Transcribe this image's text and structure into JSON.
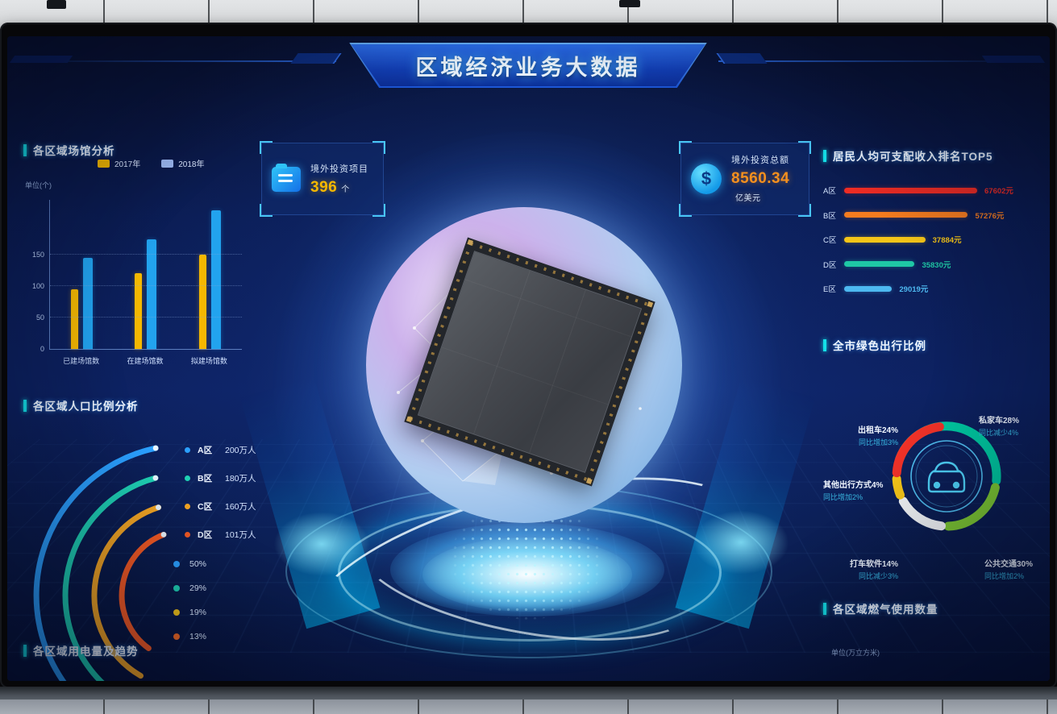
{
  "header": {
    "title": "区域经济业务大数据"
  },
  "cards": {
    "projects": {
      "icon": "folder-icon",
      "title": "境外投资项目",
      "value": "396",
      "unit": "个"
    },
    "investment": {
      "icon": "dollar-icon",
      "icon_glyph": "$",
      "title": "境外投资总额",
      "value": "8560.34",
      "unit": "亿美元"
    }
  },
  "venues_panel": {
    "title": "各区域场馆分析",
    "unit_label": "单位(个)",
    "chart_data": {
      "type": "bar",
      "categories": [
        "已建场馆数",
        "在建场馆数",
        "拟建场馆数"
      ],
      "series": [
        {
          "name": "2017年",
          "color": "#f5b800",
          "legend_color": "#f5b800",
          "values": [
            95,
            120,
            150
          ]
        },
        {
          "name": "2018年",
          "color": "#22a3ee",
          "legend_color": "#9db9f2",
          "values": [
            145,
            175,
            220
          ]
        }
      ],
      "yticks": [
        0,
        50,
        100,
        150
      ],
      "ylim": [
        0,
        150
      ],
      "grid": "dotted"
    }
  },
  "population_panel": {
    "title": "各区域人口比例分析",
    "chart_data": {
      "type": "arc-rings",
      "items": [
        {
          "label": "A区",
          "value": "200万人",
          "color": "#2ba0ff"
        },
        {
          "label": "B区",
          "value": "180万人",
          "color": "#1fd1b4"
        },
        {
          "label": "C区",
          "value": "160万人",
          "color": "#f5a623"
        },
        {
          "label": "D区",
          "value": "101万人",
          "color": "#f55a23"
        }
      ],
      "legend": [
        {
          "label": "50%",
          "color": "#2ba0ff"
        },
        {
          "label": "29%",
          "color": "#1fd1b4"
        },
        {
          "label": "19%",
          "color": "#f5c518"
        },
        {
          "label": "13%",
          "color": "#f56a23"
        }
      ]
    }
  },
  "electricity_panel": {
    "title": "各区域用电量及趋势"
  },
  "income_panel": {
    "title": "居民人均可支配收入排名TOP5",
    "chart_data": {
      "type": "bar",
      "orientation": "horizontal",
      "rows": [
        {
          "label": "A区",
          "value": "67602元",
          "number": 67602,
          "color": "#ee2c24",
          "length_pct": 100
        },
        {
          "label": "B区",
          "value": "57276元",
          "number": 57276,
          "color": "#f57c1f",
          "length_pct": 93
        },
        {
          "label": "C区",
          "value": "37884元",
          "number": 37884,
          "color": "#f5c518",
          "length_pct": 61
        },
        {
          "label": "D区",
          "value": "35830元",
          "number": 35830,
          "color": "#1fc8a5",
          "length_pct": 53
        },
        {
          "label": "E区",
          "value": "29019元",
          "number": 29019,
          "color": "#4db8f0",
          "length_pct": 36
        }
      ]
    }
  },
  "travel_panel": {
    "title": "全市绿色出行比例",
    "chart_data": {
      "type": "pie",
      "center_icon": "car-icon",
      "slices": [
        {
          "label": "私家车28%",
          "sub": "同比减少4%",
          "pct": 28,
          "color": "#00c8a0",
          "pos": "top-right"
        },
        {
          "label": "公共交通30%",
          "sub": "同比增加2%",
          "pct": 30,
          "color": "#7dc832",
          "pos": "bottom-right"
        },
        {
          "label": "打车软件14%",
          "sub": "同比减少3%",
          "pct": 14,
          "color": "#f2f4f6",
          "pos": "bottom-left"
        },
        {
          "label": "其他出行方式4%",
          "sub": "同比增加2%",
          "pct": 4,
          "color": "#f5c518",
          "pos": "left"
        },
        {
          "label": "出租车24%",
          "sub": "同比增加3%",
          "pct": 24,
          "color": "#f03228",
          "pos": "top-left"
        }
      ]
    }
  },
  "gas_panel": {
    "title": "各区域燃气使用数量",
    "unit_label": "单位(万立方米)"
  }
}
